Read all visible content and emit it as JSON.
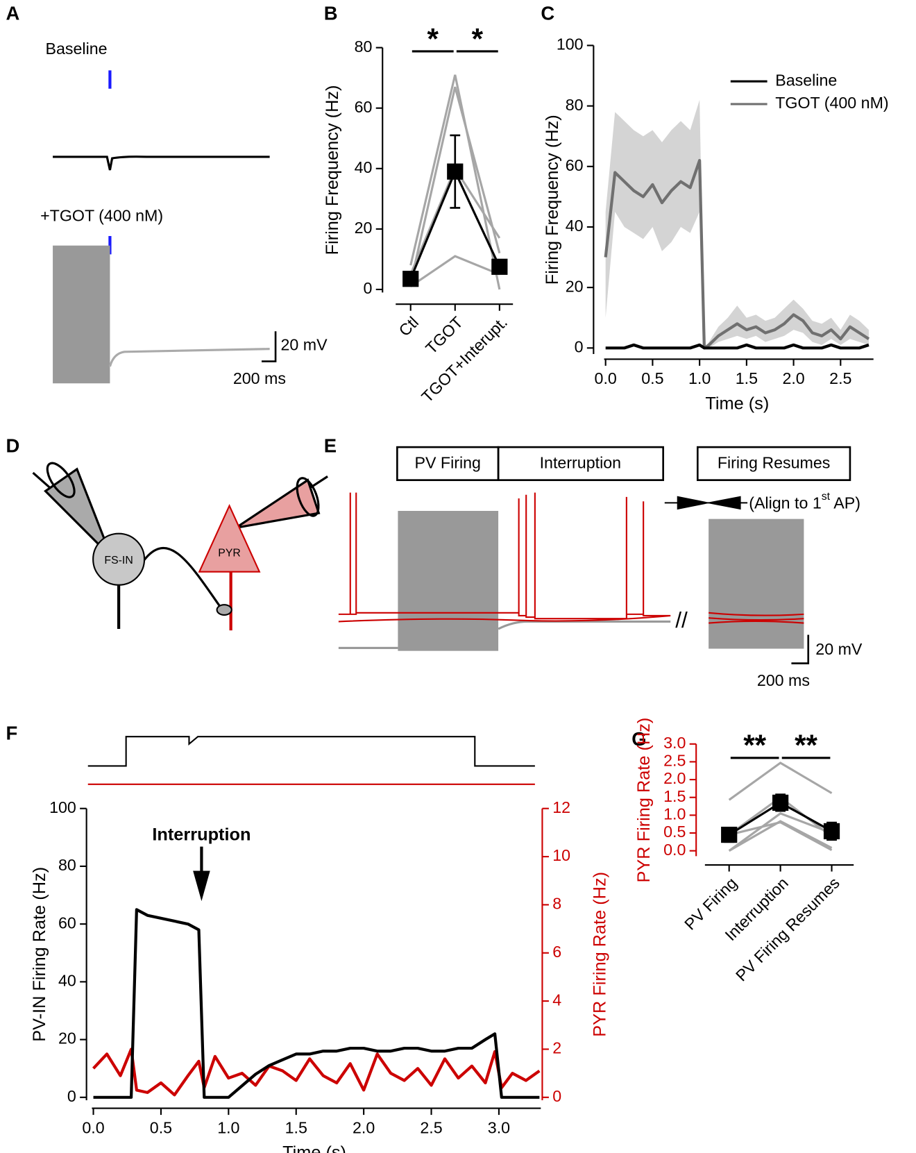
{
  "panel_labels": [
    "A",
    "B",
    "C",
    "D",
    "E",
    "F",
    "G"
  ],
  "panel_a": {
    "baseline": "Baseline",
    "tgot": "+TGOT (400 nM)",
    "scale_v": "20 mV",
    "scale_t": "200 ms"
  },
  "panel_d": {
    "fs_in": "FS-IN",
    "pyr": "PYR"
  },
  "panel_e": {
    "boxes": [
      "PV Firing",
      "Interruption",
      "Firing Resumes"
    ],
    "align_text": "(Align to 1",
    "align_sup": "st",
    "align_end": " AP)",
    "scale_v": "20 mV",
    "scale_t": "200 ms"
  },
  "panel_f": {
    "annotation": "Interruption"
  },
  "chart_data": [
    {
      "type": "line",
      "ylabel": "Firing Frequency (Hz)",
      "categories": [
        "Ctl",
        "TGOT",
        "TGOT+Interupt."
      ],
      "ylim": [
        -1,
        80
      ],
      "yticks": [
        0,
        20,
        40,
        60,
        80
      ],
      "axis_color": "#000000",
      "mean": {
        "color": "#000000",
        "values": [
          3.5,
          39,
          7.5
        ],
        "errors": [
          1,
          12,
          1
        ]
      },
      "individuals": {
        "color": "#a6a6a6",
        "values": [
          [
            8,
            71,
            0
          ],
          [
            2,
            67,
            12
          ],
          [
            1,
            11,
            5
          ],
          [
            5,
            40,
            17
          ]
        ]
      },
      "significance": [
        "*",
        "*"
      ]
    },
    {
      "type": "line",
      "xlabel": "Time (s)",
      "ylabel": "Firing Frequency (Hz)",
      "legend": "upper right",
      "xlim": [
        -0.05,
        2.85
      ],
      "ylim": [
        -2,
        100
      ],
      "xticks": [
        {
          "value": 0,
          "label": "0.0"
        },
        0.5,
        {
          "value": 1,
          "label": "1.0"
        },
        1.5,
        {
          "value": 2,
          "label": "2.0"
        },
        2.5
      ],
      "yticks": [
        0,
        20,
        40,
        60,
        80,
        100
      ],
      "x": [
        0,
        0.1,
        0.2,
        0.3,
        0.4,
        0.5,
        0.6,
        0.7,
        0.8,
        0.9,
        1.0,
        1.05,
        1.1,
        1.2,
        1.3,
        1.4,
        1.5,
        1.6,
        1.7,
        1.8,
        1.9,
        2.0,
        2.1,
        2.2,
        2.3,
        2.4,
        2.5,
        2.6,
        2.7,
        2.8
      ],
      "series": [
        {
          "name": "Baseline",
          "color": "#000000",
          "values": [
            0,
            0,
            0,
            1,
            0,
            0,
            0,
            0,
            0,
            0,
            1,
            0,
            0,
            0,
            0,
            0,
            1,
            0,
            0,
            0,
            0,
            1,
            0,
            0,
            0,
            1,
            0,
            0,
            0,
            1
          ]
        },
        {
          "name": "TGOT (400 nM)",
          "color": "#707070",
          "band_color": "#d4d4d4",
          "values": [
            30,
            58,
            55,
            52,
            50,
            54,
            48,
            52,
            55,
            53,
            62,
            0,
            1,
            4,
            6,
            8,
            6,
            7,
            5,
            6,
            8,
            11,
            9,
            5,
            4,
            6,
            3,
            7,
            5,
            3
          ],
          "lower": [
            10,
            45,
            40,
            38,
            36,
            40,
            32,
            35,
            40,
            38,
            45,
            0,
            0,
            2,
            3,
            4,
            3,
            4,
            2,
            3,
            4,
            6,
            5,
            2,
            1,
            3,
            1,
            3,
            2,
            1
          ],
          "upper": [
            45,
            78,
            75,
            72,
            70,
            72,
            68,
            72,
            75,
            72,
            82,
            0,
            2,
            7,
            10,
            14,
            10,
            11,
            9,
            10,
            13,
            16,
            13,
            9,
            8,
            10,
            6,
            11,
            9,
            6
          ]
        }
      ]
    },
    {
      "type": "line",
      "xlabel": "Time (s)",
      "ylabel": "PV-IN Firing Rate (Hz)",
      "y2label": "PYR Firing Rate (Hz)",
      "y2_color": "#cc0000",
      "xlim": [
        -0.04,
        3.31
      ],
      "ylim": [
        -1,
        100
      ],
      "y2lim": [
        -0.12,
        12
      ],
      "xticks": [
        {
          "value": 0,
          "label": "0.0"
        },
        0.5,
        {
          "value": 1,
          "label": "1.0"
        },
        1.5,
        {
          "value": 2,
          "label": "2.0"
        },
        2.5,
        {
          "value": 3,
          "label": "3.0"
        }
      ],
      "yticks": [
        0,
        20,
        40,
        60,
        80,
        100
      ],
      "y2ticks": [
        0,
        2,
        4,
        6,
        8,
        10,
        12
      ],
      "x": [
        0,
        0.1,
        0.2,
        0.28,
        0.32,
        0.4,
        0.5,
        0.6,
        0.7,
        0.78,
        0.82,
        0.9,
        1.0,
        1.1,
        1.2,
        1.3,
        1.4,
        1.5,
        1.6,
        1.7,
        1.8,
        1.9,
        2.0,
        2.1,
        2.2,
        2.3,
        2.4,
        2.5,
        2.6,
        2.7,
        2.8,
        2.9,
        2.97,
        3.02,
        3.1,
        3.2,
        3.3
      ],
      "series": [
        {
          "color": "#000000",
          "values": [
            0,
            0,
            0,
            0,
            65,
            63,
            62,
            61,
            60,
            58,
            0,
            0,
            0,
            4,
            8,
            11,
            13,
            15,
            15,
            16,
            16,
            17,
            17,
            16,
            16,
            17,
            17,
            16,
            16,
            17,
            17,
            20,
            22,
            0,
            0,
            0,
            0
          ]
        },
        {
          "color": "#cc0000",
          "axis": "y2",
          "values": [
            1.2,
            1.8,
            0.9,
            2.0,
            0.3,
            0.2,
            0.6,
            0.1,
            0.9,
            1.5,
            0.4,
            1.7,
            0.8,
            1.0,
            0.5,
            1.3,
            1.1,
            0.7,
            1.6,
            0.9,
            0.6,
            1.4,
            0.3,
            1.8,
            1.0,
            0.7,
            1.2,
            0.5,
            1.6,
            0.8,
            1.3,
            0.6,
            1.9,
            0.4,
            1.0,
            0.7,
            1.1
          ]
        }
      ]
    },
    {
      "type": "line",
      "ylabel": "PYR Firing Rate (Hz)",
      "categories": [
        "PV Firing",
        "Interruption",
        "PV Firing Resumes"
      ],
      "ylim": [
        -0.15,
        3.0
      ],
      "axis_color": "#cc0000",
      "yticks": [
        {
          "value": 0,
          "label": "0.0"
        },
        0.5,
        {
          "value": 1,
          "label": "1.0"
        },
        1.5,
        {
          "value": 2,
          "label": "2.0"
        },
        2.5,
        {
          "value": 3,
          "label": "3.0"
        }
      ],
      "mean": {
        "color": "#000000",
        "values": [
          0.45,
          1.35,
          0.55
        ],
        "errors": [
          0.2,
          0.23,
          0.24
        ]
      },
      "individuals": {
        "color": "#a6a6a6",
        "values": [
          [
            1.43,
            2.47,
            1.62
          ],
          [
            0.45,
            1.5,
            0.4
          ],
          [
            0,
            1.05,
            0.5
          ],
          [
            0,
            0.83,
            0.08
          ],
          [
            0.45,
            0.8,
            0.02
          ]
        ]
      },
      "significance": [
        "**",
        "**"
      ]
    }
  ]
}
